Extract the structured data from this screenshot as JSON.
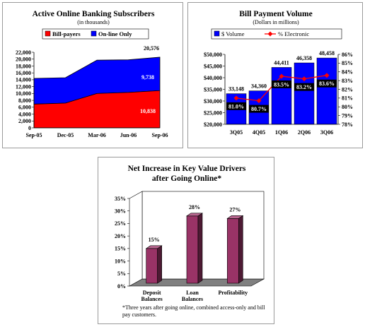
{
  "chart_data": [
    {
      "type": "area",
      "title": "Active Online Banking Subscribers",
      "subtitle": "(in thousands)",
      "categories": [
        "Sep-05",
        "Dec-05",
        "Mar-06",
        "Jun-06",
        "Sep-06"
      ],
      "series": [
        {
          "name": "Bill-payers",
          "values": [
            6900,
            7200,
            10000,
            10300,
            10838
          ],
          "color": "#ff0000"
        },
        {
          "name": "On-line Only",
          "values": [
            7500,
            7400,
            9700,
            9500,
            9738
          ],
          "color": "#0000ff"
        }
      ],
      "ylim": [
        0,
        22000
      ],
      "yticks": [
        "0",
        "2,000",
        "4,000",
        "6,000",
        "8,000",
        "10,000",
        "12,000",
        "14,000",
        "16,000",
        "18,000",
        "20,000",
        "22,000"
      ],
      "stacked": true,
      "annotations": {
        "total": "20,576",
        "online_only": "9,738",
        "bill_payers": "10,838"
      },
      "legend": "top"
    },
    {
      "type": "bar",
      "title": "Bill Payment Volume",
      "subtitle": "(Dollars in millions)",
      "categories": [
        "3Q05",
        "4Q05",
        "1Q06",
        "2Q06",
        "3Q06"
      ],
      "series": [
        {
          "name": "$ Volume",
          "values": [
            33148,
            34360,
            44411,
            46358,
            48458
          ],
          "labels": [
            "33,148",
            "34,360",
            "44,411",
            "46,358",
            "48,458"
          ],
          "color": "#0000ff"
        },
        {
          "name": "% Electronic",
          "type": "line",
          "values": [
            81.0,
            80.7,
            83.5,
            83.2,
            83.6
          ],
          "labels": [
            "81.0%",
            "80.7%",
            "83.5%",
            "83.2%",
            "83.6%"
          ],
          "color": "#ff0000",
          "axis": "right"
        }
      ],
      "ylim": [
        20000,
        50000
      ],
      "yticks": [
        "$20,000",
        "$25,000",
        "$30,000",
        "$35,000",
        "$40,000",
        "$45,000",
        "$50,000"
      ],
      "y2lim": [
        78,
        86
      ],
      "y2ticks": [
        "78%",
        "79%",
        "80%",
        "81%",
        "82%",
        "83%",
        "84%",
        "85%",
        "86%"
      ],
      "legend": "top"
    },
    {
      "type": "bar",
      "title": "Net Increase in Key Value Drivers",
      "title2": "after Going Online*",
      "categories": [
        "Deposit",
        "Loan",
        "Profitability"
      ],
      "categories_line2": [
        "Balances",
        "Balances",
        ""
      ],
      "values": [
        15,
        28,
        27
      ],
      "labels": [
        "15%",
        "28%",
        "27%"
      ],
      "ylim": [
        0,
        35
      ],
      "yticks": [
        "0%",
        "5%",
        "10%",
        "15%",
        "20%",
        "25%",
        "30%",
        "35%"
      ],
      "color": "#993366",
      "footnote": "*Three years after going online, combined access-only and bill pay customers."
    }
  ]
}
